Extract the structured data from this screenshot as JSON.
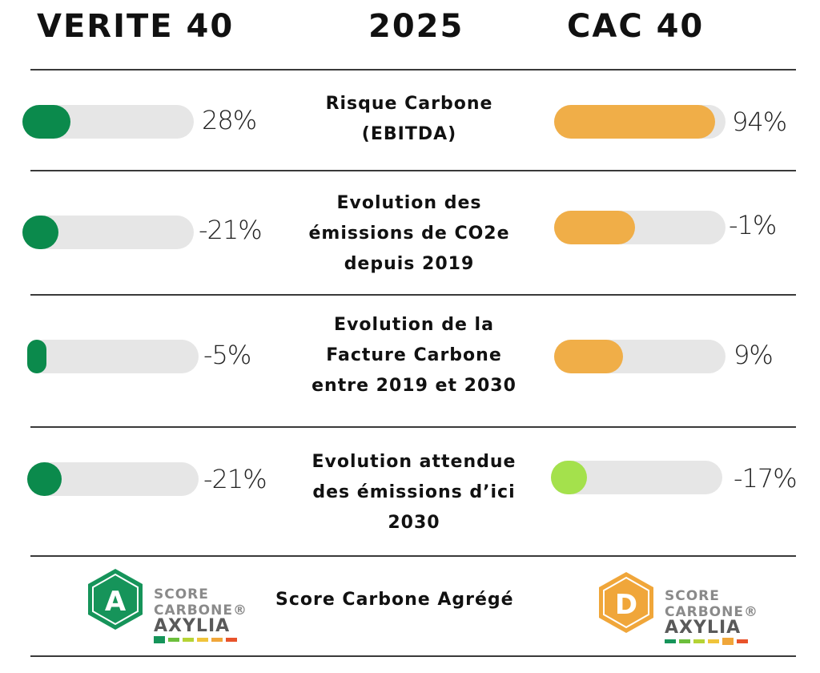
{
  "header": {
    "left": "VERITE 40",
    "center": "2025",
    "right": "CAC 40"
  },
  "rows": [
    {
      "label_lines": [
        "Risque Carbone",
        "(EBITDA)"
      ],
      "verite": {
        "value": "28%",
        "fill_fraction": 0.28,
        "color": "#0b8a4c"
      },
      "cac": {
        "value": "94%",
        "fill_fraction": 0.94,
        "color": "#f0ae48"
      }
    },
    {
      "label_lines": [
        "Evolution des",
        "émissions de CO2e",
        "depuis 2019"
      ],
      "verite": {
        "value": "-21%",
        "fill_fraction": 0.21,
        "color": "#0b8a4c"
      },
      "cac": {
        "value": "-1%",
        "fill_fraction": 0.47,
        "color": "#f0ae48"
      }
    },
    {
      "label_lines": [
        "Evolution de la",
        "Facture Carbone",
        "entre 2019 et 2030"
      ],
      "verite": {
        "value": "-5%",
        "fill_fraction": 0.1,
        "color": "#0b8a4c"
      },
      "cac": {
        "value": "9%",
        "fill_fraction": 0.4,
        "color": "#f0ae48"
      }
    },
    {
      "label_lines": [
        "Evolution attendue",
        "des émissions d’ici",
        "2030"
      ],
      "verite": {
        "value": "-21%",
        "fill_fraction": 0.2,
        "color": "#0b8a4c"
      },
      "cac": {
        "value": "-17%",
        "fill_fraction": 0.21,
        "color": "#a4e14c"
      }
    }
  ],
  "aggregate": {
    "label": "Score Carbone Agrégé",
    "verite_badge": {
      "letter": "A",
      "color": "#16945a",
      "brand_line1": "SCORE",
      "brand_line2": "CARBONE®",
      "brand_line3": "AXYLIA"
    },
    "cac_badge": {
      "letter": "D",
      "color": "#f0a63a",
      "brand_line1": "SCORE",
      "brand_line2": "CARBONE®",
      "brand_line3": "AXYLIA"
    },
    "scale_colors": [
      "#16945a",
      "#6cbf3c",
      "#b5d335",
      "#f0c43a",
      "#f0a63a",
      "#e8532b"
    ]
  }
}
